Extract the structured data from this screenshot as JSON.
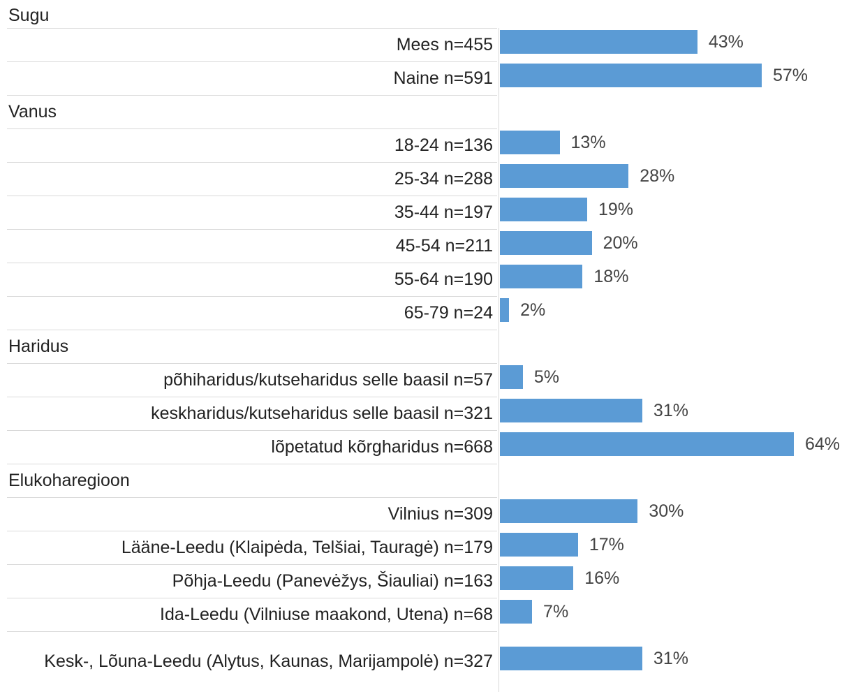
{
  "chart_data": {
    "type": "bar",
    "orientation": "horizontal",
    "color": "#5b9bd5",
    "groups": [
      {
        "name": "Sugu",
        "categories": [
          "Mees n=455",
          "Naine n=591"
        ],
        "values": [
          43,
          57
        ],
        "value_labels": [
          "43%",
          "57%"
        ]
      },
      {
        "name": "Vanus",
        "categories": [
          "18-24 n=136",
          "25-34 n=288",
          "35-44 n=197",
          "45-54 n=211",
          "55-64 n=190",
          "65-79  n=24"
        ],
        "values": [
          13,
          28,
          19,
          20,
          18,
          2
        ],
        "value_labels": [
          "13%",
          "28%",
          "19%",
          "20%",
          "18%",
          "2%"
        ]
      },
      {
        "name": "Haridus",
        "categories": [
          "põhiharidus/kutseharidus selle baasil  n=57",
          "keskharidus/kutseharidus selle baasil n=321",
          "lõpetatud kõrgharidus n=668"
        ],
        "values": [
          5,
          31,
          64
        ],
        "value_labels": [
          "5%",
          "31%",
          "64%"
        ]
      },
      {
        "name": "Elukoharegioon",
        "categories": [
          "Vilnius n=309",
          "Lääne-Leedu (Klaipėda, Telšiai, Tauragė) n=179",
          "Põhja-Leedu (Panevėžys, Šiauliai) n=163",
          "Ida-Leedu (Vilniuse maakond, Utena)  n=68",
          "Kesk-, Lõuna-Leedu (Alytus, Kaunas, Marijampolė) n=327"
        ],
        "values": [
          30,
          17,
          16,
          7,
          31
        ],
        "value_labels": [
          "30%",
          "17%",
          "16%",
          "7%",
          "31%"
        ]
      }
    ]
  }
}
